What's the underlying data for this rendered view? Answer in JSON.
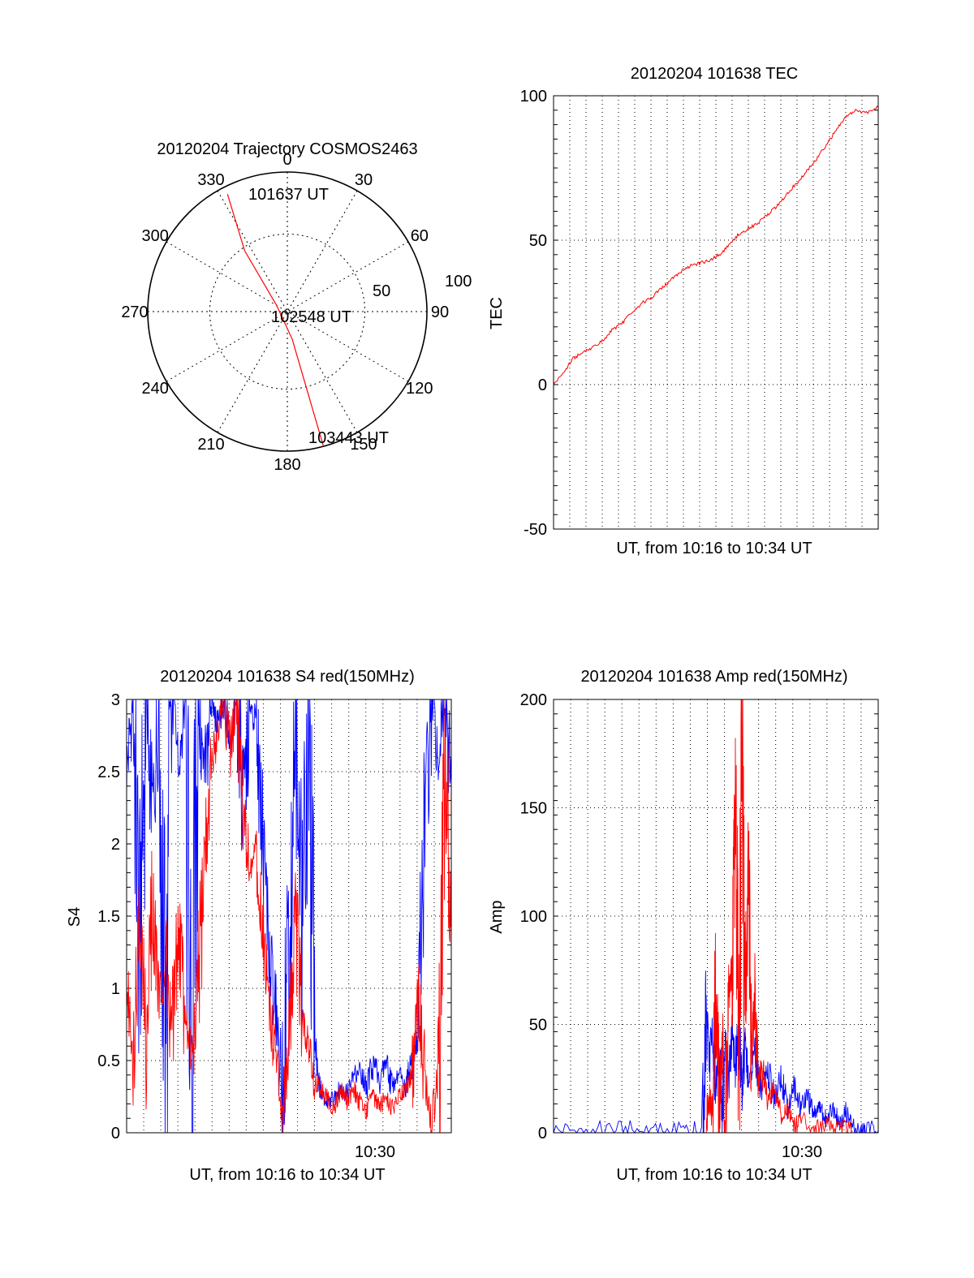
{
  "colors": {
    "red": "#ff0000",
    "blue": "#0000ff",
    "axis": "#000000",
    "grid": "#000000"
  },
  "chart_data": [
    {
      "id": "polar",
      "type": "polar-trajectory",
      "title": "20120204 Trajectory COSMOS2463",
      "azimuth_labels": [
        "0",
        "30",
        "60",
        "90",
        "120",
        "150",
        "180",
        "210",
        "240",
        "270",
        "300",
        "330"
      ],
      "radial_labels": [
        "50",
        "100"
      ],
      "track_labels": [
        "101637 UT",
        "102548 UT",
        "103443 UT"
      ],
      "track": [
        {
          "az": 333,
          "zen": 85
        },
        {
          "az": 325,
          "zen": 48
        },
        {
          "az": 300,
          "zen": 8
        },
        {
          "az": 170,
          "zen": 18
        },
        {
          "az": 165,
          "zen": 90
        }
      ]
    },
    {
      "id": "tec",
      "type": "line",
      "title": "20120204 101638 TEC",
      "xlabel": "UT, from 10:16 to 10:34 UT",
      "ylabel": "TEC",
      "ylim": [
        -50,
        100
      ],
      "yticks": [
        "-50",
        "0",
        "50",
        "100"
      ],
      "xlim": [
        0,
        1
      ],
      "series": [
        {
          "color": "red",
          "x": [
            0.0,
            0.03,
            0.06,
            0.09,
            0.12,
            0.15,
            0.18,
            0.21,
            0.24,
            0.27,
            0.3,
            0.33,
            0.36,
            0.39,
            0.42,
            0.45,
            0.48,
            0.51,
            0.54,
            0.57,
            0.6,
            0.63,
            0.66,
            0.69,
            0.72,
            0.75,
            0.78,
            0.81,
            0.84,
            0.87,
            0.9,
            0.93,
            0.96,
            1.0
          ],
          "y": [
            0,
            4,
            9,
            11,
            13,
            15,
            19,
            21,
            25,
            28,
            30,
            33,
            36,
            39,
            41,
            42,
            43,
            45,
            48,
            52,
            54,
            56,
            59,
            62,
            66,
            70,
            74,
            78,
            83,
            88,
            93,
            95,
            94,
            96
          ]
        }
      ]
    },
    {
      "id": "s4",
      "type": "line",
      "title": "20120204 101638 S4 red(150MHz)",
      "xlabel": "UT, from 10:16 to 10:34 UT",
      "ylabel": "S4",
      "ylim": [
        0,
        3
      ],
      "yticks": [
        "0",
        "0.5",
        "1",
        "1.5",
        "2",
        "2.5",
        "3"
      ],
      "xtick_labels": [
        {
          "x": 0.765,
          "label": "10:30"
        }
      ],
      "series": [
        {
          "color": "blue",
          "x": [
            0.0,
            0.02,
            0.04,
            0.06,
            0.08,
            0.1,
            0.12,
            0.14,
            0.16,
            0.18,
            0.2,
            0.22,
            0.24,
            0.26,
            0.28,
            0.3,
            0.32,
            0.34,
            0.36,
            0.38,
            0.4,
            0.42,
            0.44,
            0.46,
            0.48,
            0.5,
            0.52,
            0.54,
            0.56,
            0.58,
            0.6,
            0.62,
            0.64,
            0.66,
            0.68,
            0.7,
            0.72,
            0.74,
            0.76,
            0.78,
            0.8,
            0.82,
            0.84,
            0.86,
            0.88,
            0.9,
            0.92,
            0.94,
            0.96,
            0.98,
            1.0
          ],
          "y": [
            2.5,
            3.0,
            1.2,
            3.0,
            2.2,
            3.0,
            0.4,
            3.0,
            2.6,
            3.0,
            0.1,
            3.0,
            2.4,
            3.0,
            2.8,
            3.0,
            2.7,
            3.0,
            2.2,
            3.0,
            2.8,
            2.0,
            1.3,
            0.8,
            0.2,
            1.4,
            2.9,
            1.3,
            2.8,
            0.6,
            0.3,
            0.2,
            0.25,
            0.3,
            0.28,
            0.4,
            0.45,
            0.3,
            0.5,
            0.35,
            0.5,
            0.3,
            0.42,
            0.3,
            0.5,
            0.7,
            2.2,
            3.0,
            2.6,
            3.0,
            2.4
          ]
        },
        {
          "color": "red",
          "x": [
            0.0,
            0.02,
            0.04,
            0.06,
            0.08,
            0.1,
            0.12,
            0.14,
            0.16,
            0.18,
            0.2,
            0.22,
            0.24,
            0.26,
            0.28,
            0.3,
            0.32,
            0.34,
            0.36,
            0.38,
            0.4,
            0.42,
            0.44,
            0.46,
            0.48,
            0.5,
            0.52,
            0.54,
            0.56,
            0.58,
            0.6,
            0.62,
            0.64,
            0.66,
            0.68,
            0.7,
            0.72,
            0.74,
            0.76,
            0.78,
            0.8,
            0.82,
            0.84,
            0.86,
            0.88,
            0.9,
            0.92,
            0.94,
            0.96,
            0.98,
            1.0
          ],
          "y": [
            1.0,
            0.6,
            1.4,
            0.7,
            1.6,
            0.9,
            1.2,
            0.6,
            1.5,
            0.8,
            0.5,
            1.0,
            1.9,
            2.5,
            2.8,
            3.0,
            2.6,
            3.0,
            2.2,
            1.8,
            2.0,
            1.4,
            0.9,
            0.5,
            0.18,
            0.6,
            1.5,
            0.8,
            0.6,
            0.35,
            0.3,
            0.22,
            0.18,
            0.3,
            0.22,
            0.3,
            0.2,
            0.15,
            0.25,
            0.2,
            0.22,
            0.18,
            0.25,
            0.3,
            0.4,
            0.9,
            0.3,
            0.0,
            0.5,
            2.6,
            1.5
          ]
        }
      ]
    },
    {
      "id": "amp",
      "type": "line",
      "title": "20120204 101638 Amp red(150MHz)",
      "xlabel": "UT, from 10:16 to 10:34 UT",
      "ylabel": "Amp",
      "ylim": [
        0,
        200
      ],
      "yticks": [
        "0",
        "50",
        "100",
        "150",
        "200"
      ],
      "xtick_labels": [
        {
          "x": 0.765,
          "label": "10:30"
        }
      ],
      "series": [
        {
          "color": "blue",
          "x": [
            0.0,
            0.1,
            0.2,
            0.3,
            0.4,
            0.46,
            0.47,
            0.48,
            0.49,
            0.5,
            0.51,
            0.52,
            0.53,
            0.54,
            0.55,
            0.56,
            0.57,
            0.58,
            0.59,
            0.6,
            0.62,
            0.64,
            0.66,
            0.68,
            0.7,
            0.72,
            0.74,
            0.76,
            0.78,
            0.8,
            0.82,
            0.84,
            0.86,
            0.88,
            0.9,
            0.92,
            0.94,
            0.96,
            1.0
          ],
          "y": [
            1,
            1,
            1,
            1,
            1,
            2,
            55,
            30,
            50,
            20,
            35,
            10,
            40,
            25,
            45,
            30,
            50,
            20,
            40,
            25,
            35,
            20,
            30,
            15,
            25,
            12,
            22,
            10,
            18,
            8,
            15,
            5,
            12,
            4,
            10,
            3,
            1,
            1,
            1
          ]
        },
        {
          "color": "red",
          "x": [
            0.47,
            0.48,
            0.49,
            0.5,
            0.51,
            0.52,
            0.53,
            0.54,
            0.55,
            0.56,
            0.57,
            0.58,
            0.59,
            0.6,
            0.61,
            0.62,
            0.63,
            0.64,
            0.66,
            0.68,
            0.7,
            0.72,
            0.74,
            0.76,
            0.8,
            0.84,
            0.88,
            0.92
          ],
          "y": [
            3,
            20,
            5,
            70,
            10,
            40,
            5,
            60,
            80,
            150,
            30,
            180,
            60,
            120,
            40,
            60,
            20,
            30,
            15,
            20,
            8,
            12,
            4,
            6,
            3,
            4,
            2,
            1
          ]
        }
      ]
    }
  ]
}
